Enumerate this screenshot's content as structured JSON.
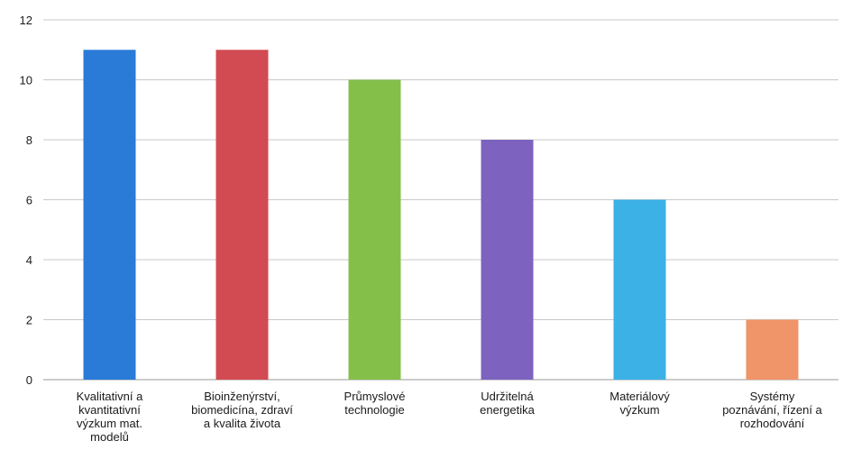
{
  "chart_data": {
    "type": "bar",
    "title": "",
    "xlabel": "",
    "ylabel": "",
    "ylim": [
      0,
      12
    ],
    "yticks": [
      0,
      2,
      4,
      6,
      8,
      10,
      12
    ],
    "grid": true,
    "legend": "none",
    "categories": [
      [
        "Kvalitativní a",
        "kvantitativní",
        "výzkum mat.",
        "modelů"
      ],
      [
        "Bioinženýrství,",
        "biomedicína, zdraví",
        "a kvalita života"
      ],
      [
        "Průmyslové",
        "technologie"
      ],
      [
        "Udržitelná",
        "energetika"
      ],
      [
        "Materiálový",
        "výzkum"
      ],
      [
        "Systémy",
        "poznávání, řízení a",
        "rozhodování"
      ]
    ],
    "values": [
      11,
      11,
      10,
      8,
      6,
      2
    ],
    "colors": [
      "#2a7ad8",
      "#d24b52",
      "#84bf4a",
      "#7d62c0",
      "#3bb1e6",
      "#f0946a"
    ]
  }
}
